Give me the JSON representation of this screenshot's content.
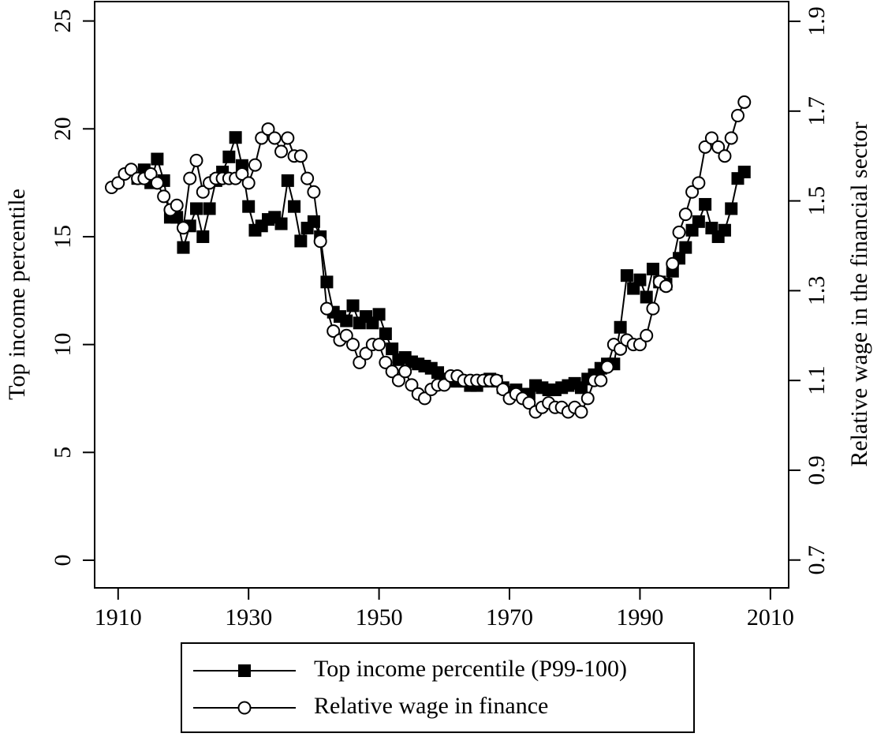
{
  "chart_data": {
    "type": "line",
    "ylabel": "Top income percentile",
    "y2label": "Relative wage in the financial sector",
    "x": [
      1909,
      1910,
      1911,
      1912,
      1913,
      1914,
      1915,
      1916,
      1917,
      1918,
      1919,
      1920,
      1921,
      1922,
      1923,
      1924,
      1925,
      1926,
      1927,
      1928,
      1929,
      1930,
      1931,
      1932,
      1933,
      1934,
      1935,
      1936,
      1937,
      1938,
      1939,
      1940,
      1941,
      1942,
      1943,
      1944,
      1945,
      1946,
      1947,
      1948,
      1949,
      1950,
      1951,
      1952,
      1953,
      1954,
      1955,
      1956,
      1957,
      1958,
      1959,
      1960,
      1961,
      1962,
      1963,
      1964,
      1965,
      1966,
      1967,
      1968,
      1969,
      1970,
      1971,
      1972,
      1973,
      1974,
      1975,
      1976,
      1977,
      1978,
      1979,
      1980,
      1981,
      1982,
      1983,
      1984,
      1985,
      1986,
      1987,
      1988,
      1989,
      1990,
      1991,
      1992,
      1993,
      1994,
      1995,
      1996,
      1997,
      1998,
      1999,
      2000,
      2001,
      2002,
      2003,
      2004,
      2005,
      2006
    ],
    "series": [
      {
        "name": "Top income percentile (P99-100)",
        "color": "#000000",
        "marker": "square",
        "values": [
          null,
          null,
          null,
          null,
          17.7,
          18.1,
          17.5,
          18.6,
          17.6,
          15.9,
          15.9,
          14.5,
          15.5,
          16.3,
          15.0,
          16.3,
          17.6,
          18.0,
          18.7,
          19.6,
          18.3,
          16.4,
          15.3,
          15.5,
          15.8,
          15.9,
          15.6,
          17.6,
          16.4,
          14.8,
          15.4,
          15.7,
          15.0,
          12.9,
          11.5,
          11.3,
          11.1,
          11.8,
          11.0,
          11.3,
          11.0,
          11.4,
          10.5,
          9.8,
          9.3,
          9.4,
          9.2,
          9.1,
          9.0,
          8.9,
          8.7,
          8.4,
          8.3,
          8.3,
          8.3,
          8.1,
          8.1,
          8.3,
          8.4,
          8.3,
          8.0,
          7.8,
          7.9,
          7.7,
          7.7,
          8.1,
          8.0,
          7.9,
          7.9,
          8.0,
          8.1,
          8.2,
          8.0,
          8.4,
          8.6,
          8.9,
          9.1,
          9.1,
          10.8,
          13.2,
          12.6,
          13.0,
          12.2,
          13.5,
          12.9,
          12.8,
          13.4,
          14.0,
          14.5,
          15.3,
          15.7,
          16.5,
          15.4,
          15.0,
          15.3,
          16.3,
          17.7,
          18.0
        ]
      },
      {
        "name": "Relative wage in finance",
        "color": "#000000",
        "marker": "circle",
        "axis": "y2",
        "values": [
          1.53,
          1.54,
          1.56,
          1.57,
          1.55,
          1.55,
          1.56,
          1.54,
          1.51,
          1.48,
          1.49,
          1.44,
          1.55,
          1.59,
          1.52,
          1.54,
          1.55,
          1.55,
          1.55,
          1.55,
          1.56,
          1.54,
          1.58,
          1.64,
          1.66,
          1.64,
          1.61,
          1.64,
          1.6,
          1.6,
          1.55,
          1.52,
          1.41,
          1.26,
          1.21,
          1.19,
          1.2,
          1.18,
          1.14,
          1.16,
          1.18,
          1.18,
          1.14,
          1.12,
          1.1,
          1.12,
          1.09,
          1.07,
          1.06,
          1.08,
          1.09,
          1.09,
          1.11,
          1.11,
          1.1,
          1.1,
          1.1,
          1.1,
          1.1,
          1.1,
          1.08,
          1.06,
          1.07,
          1.06,
          1.05,
          1.03,
          1.04,
          1.05,
          1.04,
          1.04,
          1.03,
          1.04,
          1.03,
          1.06,
          1.1,
          1.1,
          1.13,
          1.18,
          1.17,
          1.19,
          1.18,
          1.18,
          1.2,
          1.26,
          1.32,
          1.31,
          1.36,
          1.43,
          1.47,
          1.52,
          1.54,
          1.62,
          1.64,
          1.62,
          1.6,
          1.64,
          1.69,
          1.72
        ]
      }
    ],
    "xlim": [
      1906.4,
      2012.8
    ],
    "xticks": [
      1910,
      1930,
      1950,
      1970,
      1990,
      2010
    ],
    "ylim": [
      -1.28,
      25.9
    ],
    "yticks": [
      0,
      5,
      10,
      15,
      20,
      25
    ],
    "y2lim": [
      0.638,
      1.944
    ],
    "y2ticks": [
      0.7,
      0.9,
      1.1,
      1.3,
      1.5,
      1.7,
      1.9
    ],
    "grid": false,
    "legend": "bottom"
  }
}
